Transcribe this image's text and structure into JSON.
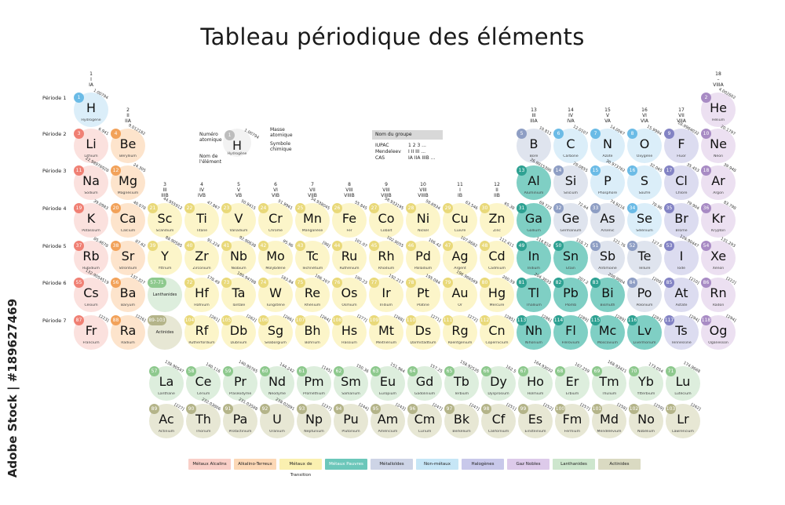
{
  "title": "Tableau périodique des éléments",
  "sidebar_text": "Adobe Stock | #189627469",
  "period_labels": [
    "Période 1",
    "Période 2",
    "Période 3",
    "Période 4",
    "Période 5",
    "Période 6",
    "Période 7"
  ],
  "group_labels": [
    {
      "g": 1,
      "text": "1\nI\nIA"
    },
    {
      "g": 2,
      "text": "2\nII\nIIA"
    },
    {
      "g": 3,
      "text": "3\nIII\nIIIB"
    },
    {
      "g": 4,
      "text": "4\nIV\nIVB"
    },
    {
      "g": 5,
      "text": "5\nV\nVB"
    },
    {
      "g": 6,
      "text": "6\nVI\nVIB"
    },
    {
      "g": 7,
      "text": "7\nVII\nVIIB"
    },
    {
      "g": 8,
      "text": "8\nVIII\nVIIIB"
    },
    {
      "g": 9,
      "text": "9\nVIII\nVIIIB"
    },
    {
      "g": 10,
      "text": "10\nVIII\nVIIIB"
    },
    {
      "g": 11,
      "text": "11\nI\nIB"
    },
    {
      "g": 12,
      "text": "12\nII\nIIB"
    },
    {
      "g": 13,
      "text": "13\nIII\nIIIA"
    },
    {
      "g": 14,
      "text": "14\nIV\nIVA"
    },
    {
      "g": 15,
      "text": "15\nV\nVA"
    },
    {
      "g": 16,
      "text": "16\nVI\nVIA"
    },
    {
      "g": 17,
      "text": "17\nVII\nVIIA"
    },
    {
      "g": 18,
      "text": "18\n–\nVIIIA"
    }
  ],
  "key": {
    "number_label": "Numéro atomique",
    "mass_label": "Masse atomique",
    "symbol_label": "Symbole chimique",
    "name_label": "Nom de l'élément",
    "example_number": "1",
    "example_mass": "1.00794",
    "example_symbol": "H",
    "example_name": "Hydrogène"
  },
  "group_key": {
    "header": "Nom du groupe",
    "rows": [
      {
        "label": "IUPAC",
        "value": "1  2  3 ..."
      },
      {
        "label": "Mendeleev",
        "value": "I  II  III ..."
      },
      {
        "label": "CAS",
        "value": "IA  IIA  IIIB ..."
      }
    ]
  },
  "placeholders": [
    {
      "period": 6,
      "num": "57-71",
      "label": "Lanthanides",
      "cat": "lan"
    },
    {
      "period": 7,
      "num": "89-103",
      "label": "Actinides",
      "cat": "act"
    }
  ],
  "colors": {
    "alk": {
      "bub": "#fbe1de",
      "num": "#f08074"
    },
    "ae": {
      "bub": "#fde4cc",
      "num": "#f2a25a"
    },
    "tm": {
      "bub": "#fcf5c9",
      "num": "#e9d97a"
    },
    "pm": {
      "bub": "#7fcfc4",
      "num": "#2ea192"
    },
    "met": {
      "bub": "#dfe4ee",
      "num": "#8e9ec4"
    },
    "non": {
      "bub": "#dbeef9",
      "num": "#6bbbe6"
    },
    "hal": {
      "bub": "#dcdcf0",
      "num": "#8383c4"
    },
    "ng": {
      "bub": "#ece0f1",
      "num": "#a88bc4"
    },
    "lan": {
      "bub": "#ddeedd",
      "num": "#8ec98e"
    },
    "act": {
      "bub": "#e7e7d4",
      "num": "#b4b489"
    }
  },
  "legend": [
    {
      "label": "Métaux Alcalins",
      "cat": "alk",
      "bg": "#f9cfc8"
    },
    {
      "label": "Alkalino-Terreux",
      "cat": "ae",
      "bg": "#fcd8b6"
    },
    {
      "label": "Métaux de Transition",
      "cat": "tm",
      "bg": "#faf0b0"
    },
    {
      "label": "Métaux Pauvres",
      "cat": "pm",
      "bg": "#6cc7ba"
    },
    {
      "label": "Métalloïdes",
      "cat": "met",
      "bg": "#cdd4e6"
    },
    {
      "label": "Non-métaux",
      "cat": "non",
      "bg": "#c6e6f6"
    },
    {
      "label": "Halogènes",
      "cat": "hal",
      "bg": "#c8c8ea"
    },
    {
      "label": "Gaz Nobles",
      "cat": "ng",
      "bg": "#ddcaea"
    },
    {
      "label": "Lanthanides",
      "cat": "lan",
      "bg": "#cde6cd"
    },
    {
      "label": "Actinides",
      "cat": "act",
      "bg": "#dadac2"
    }
  ],
  "elements": [
    {
      "z": 1,
      "s": "H",
      "n": "Hydrogène",
      "m": "1.00794",
      "p": 1,
      "g": 1,
      "c": "non"
    },
    {
      "z": 2,
      "s": "He",
      "n": "Hélium",
      "m": "4.002602",
      "p": 1,
      "g": 18,
      "c": "ng"
    },
    {
      "z": 3,
      "s": "Li",
      "n": "Lithium",
      "m": "6.941",
      "p": 2,
      "g": 1,
      "c": "alk"
    },
    {
      "z": 4,
      "s": "Be",
      "n": "Béryllium",
      "m": "9.012182",
      "p": 2,
      "g": 2,
      "c": "ae"
    },
    {
      "z": 5,
      "s": "B",
      "n": "Bore",
      "m": "10.811",
      "p": 2,
      "g": 13,
      "c": "met"
    },
    {
      "z": 6,
      "s": "C",
      "n": "Carbone",
      "m": "12.0107",
      "p": 2,
      "g": 14,
      "c": "non"
    },
    {
      "z": 7,
      "s": "N",
      "n": "Azote",
      "m": "14.0067",
      "p": 2,
      "g": 15,
      "c": "non"
    },
    {
      "z": 8,
      "s": "O",
      "n": "Oxygène",
      "m": "15.9994",
      "p": 2,
      "g": 16,
      "c": "non"
    },
    {
      "z": 9,
      "s": "F",
      "n": "Fluor",
      "m": "18.9984032",
      "p": 2,
      "g": 17,
      "c": "hal"
    },
    {
      "z": 10,
      "s": "Ne",
      "n": "Néon",
      "m": "20.1797",
      "p": 2,
      "g": 18,
      "c": "ng"
    },
    {
      "z": 11,
      "s": "Na",
      "n": "Sodium",
      "m": "22.98976928",
      "p": 3,
      "g": 1,
      "c": "alk"
    },
    {
      "z": 12,
      "s": "Mg",
      "n": "Magnésium",
      "m": "24.305",
      "p": 3,
      "g": 2,
      "c": "ae"
    },
    {
      "z": 13,
      "s": "Al",
      "n": "Aluminium",
      "m": "26.9815386",
      "p": 3,
      "g": 13,
      "c": "pm"
    },
    {
      "z": 14,
      "s": "Si",
      "n": "Silicium",
      "m": "28.0855",
      "p": 3,
      "g": 14,
      "c": "met"
    },
    {
      "z": 15,
      "s": "P",
      "n": "Phosphore",
      "m": "30.973762",
      "p": 3,
      "g": 15,
      "c": "non"
    },
    {
      "z": 16,
      "s": "S",
      "n": "Soufre",
      "m": "32.065",
      "p": 3,
      "g": 16,
      "c": "non"
    },
    {
      "z": 17,
      "s": "Cl",
      "n": "Chlore",
      "m": "35.453",
      "p": 3,
      "g": 17,
      "c": "hal"
    },
    {
      "z": 18,
      "s": "Ar",
      "n": "Argon",
      "m": "39.948",
      "p": 3,
      "g": 18,
      "c": "ng"
    },
    {
      "z": 19,
      "s": "K",
      "n": "Potassium",
      "m": "39.0983",
      "p": 4,
      "g": 1,
      "c": "alk"
    },
    {
      "z": 20,
      "s": "Ca",
      "n": "Calcium",
      "m": "40.078",
      "p": 4,
      "g": 2,
      "c": "ae"
    },
    {
      "z": 21,
      "s": "Sc",
      "n": "Scandium",
      "m": "44.955912",
      "p": 4,
      "g": 3,
      "c": "tm"
    },
    {
      "z": 22,
      "s": "Ti",
      "n": "Titane",
      "m": "47.867",
      "p": 4,
      "g": 4,
      "c": "tm"
    },
    {
      "z": 23,
      "s": "V",
      "n": "Vanadium",
      "m": "50.9415",
      "p": 4,
      "g": 5,
      "c": "tm"
    },
    {
      "z": 24,
      "s": "Cr",
      "n": "Chrome",
      "m": "51.9961",
      "p": 4,
      "g": 6,
      "c": "tm"
    },
    {
      "z": 25,
      "s": "Mn",
      "n": "Manganèse",
      "m": "54.938045",
      "p": 4,
      "g": 7,
      "c": "tm"
    },
    {
      "z": 26,
      "s": "Fe",
      "n": "Fer",
      "m": "55.845",
      "p": 4,
      "g": 8,
      "c": "tm"
    },
    {
      "z": 27,
      "s": "Co",
      "n": "Cobalt",
      "m": "58.933195",
      "p": 4,
      "g": 9,
      "c": "tm"
    },
    {
      "z": 28,
      "s": "Ni",
      "n": "Nickel",
      "m": "58.6934",
      "p": 4,
      "g": 10,
      "c": "tm"
    },
    {
      "z": 29,
      "s": "Cu",
      "n": "Cuivre",
      "m": "63.546",
      "p": 4,
      "g": 11,
      "c": "tm"
    },
    {
      "z": 30,
      "s": "Zn",
      "n": "Zinc",
      "m": "65.38",
      "p": 4,
      "g": 12,
      "c": "tm"
    },
    {
      "z": 31,
      "s": "Ga",
      "n": "Gallium",
      "m": "69.723",
      "p": 4,
      "g": 13,
      "c": "pm"
    },
    {
      "z": 32,
      "s": "Ge",
      "n": "Germanium",
      "m": "72.64",
      "p": 4,
      "g": 14,
      "c": "met"
    },
    {
      "z": 33,
      "s": "As",
      "n": "Arsenic",
      "m": "74.9216",
      "p": 4,
      "g": 15,
      "c": "met"
    },
    {
      "z": 34,
      "s": "Se",
      "n": "Sélénium",
      "m": "78.96",
      "p": 4,
      "g": 16,
      "c": "non"
    },
    {
      "z": 35,
      "s": "Br",
      "n": "Brome",
      "m": "79.904",
      "p": 4,
      "g": 17,
      "c": "hal"
    },
    {
      "z": 36,
      "s": "Kr",
      "n": "Krypton",
      "m": "83.798",
      "p": 4,
      "g": 18,
      "c": "ng"
    },
    {
      "z": 37,
      "s": "Rb",
      "n": "Rubidium",
      "m": "85.4678",
      "p": 5,
      "g": 1,
      "c": "alk"
    },
    {
      "z": 38,
      "s": "Sr",
      "n": "Strontium",
      "m": "87.62",
      "p": 5,
      "g": 2,
      "c": "ae"
    },
    {
      "z": 39,
      "s": "Y",
      "n": "Yttrium",
      "m": "88.90585",
      "p": 5,
      "g": 3,
      "c": "tm"
    },
    {
      "z": 40,
      "s": "Zr",
      "n": "Zirconium",
      "m": "91.224",
      "p": 5,
      "g": 4,
      "c": "tm"
    },
    {
      "z": 41,
      "s": "Nb",
      "n": "Niobium",
      "m": "92.90638",
      "p": 5,
      "g": 5,
      "c": "tm"
    },
    {
      "z": 42,
      "s": "Mo",
      "n": "Molybdène",
      "m": "95.96",
      "p": 5,
      "g": 6,
      "c": "tm"
    },
    {
      "z": 43,
      "s": "Tc",
      "n": "Technétium",
      "m": "[98]",
      "p": 5,
      "g": 7,
      "c": "tm"
    },
    {
      "z": 44,
      "s": "Ru",
      "n": "Ruthénium",
      "m": "101.07",
      "p": 5,
      "g": 8,
      "c": "tm"
    },
    {
      "z": 45,
      "s": "Rh",
      "n": "Rhodium",
      "m": "102.9055",
      "p": 5,
      "g": 9,
      "c": "tm"
    },
    {
      "z": 46,
      "s": "Pd",
      "n": "Palladium",
      "m": "106.42",
      "p": 5,
      "g": 10,
      "c": "tm"
    },
    {
      "z": 47,
      "s": "Ag",
      "n": "Argent",
      "m": "107.8682",
      "p": 5,
      "g": 11,
      "c": "tm"
    },
    {
      "z": 48,
      "s": "Cd",
      "n": "Cadmium",
      "m": "112.411",
      "p": 5,
      "g": 12,
      "c": "tm"
    },
    {
      "z": 49,
      "s": "In",
      "n": "Indium",
      "m": "114.818",
      "p": 5,
      "g": 13,
      "c": "pm"
    },
    {
      "z": 50,
      "s": "Sn",
      "n": "Étain",
      "m": "118.71",
      "p": 5,
      "g": 14,
      "c": "pm"
    },
    {
      "z": 51,
      "s": "Sb",
      "n": "Antimoine",
      "m": "121.76",
      "p": 5,
      "g": 15,
      "c": "met"
    },
    {
      "z": 52,
      "s": "Te",
      "n": "Tellure",
      "m": "127.6",
      "p": 5,
      "g": 16,
      "c": "met"
    },
    {
      "z": 53,
      "s": "I",
      "n": "Iode",
      "m": "126.90447",
      "p": 5,
      "g": 17,
      "c": "hal"
    },
    {
      "z": 54,
      "s": "Xe",
      "n": "Xénon",
      "m": "131.293",
      "p": 5,
      "g": 18,
      "c": "ng"
    },
    {
      "z": 55,
      "s": "Cs",
      "n": "Césium",
      "m": "132.9054519",
      "p": 6,
      "g": 1,
      "c": "alk"
    },
    {
      "z": 56,
      "s": "Ba",
      "n": "Baryum",
      "m": "137.327",
      "p": 6,
      "g": 2,
      "c": "ae"
    },
    {
      "z": 72,
      "s": "Hf",
      "n": "Hafnium",
      "m": "178.49",
      "p": 6,
      "g": 4,
      "c": "tm"
    },
    {
      "z": 73,
      "s": "Ta",
      "n": "Tantale",
      "m": "180.94788",
      "p": 6,
      "g": 5,
      "c": "tm"
    },
    {
      "z": 74,
      "s": "W",
      "n": "Tungstène",
      "m": "183.84",
      "p": 6,
      "g": 6,
      "c": "tm"
    },
    {
      "z": 75,
      "s": "Re",
      "n": "Rhénium",
      "m": "186.207",
      "p": 6,
      "g": 7,
      "c": "tm"
    },
    {
      "z": 76,
      "s": "Os",
      "n": "Osmium",
      "m": "190.23",
      "p": 6,
      "g": 8,
      "c": "tm"
    },
    {
      "z": 77,
      "s": "Ir",
      "n": "Iridium",
      "m": "192.217",
      "p": 6,
      "g": 9,
      "c": "tm"
    },
    {
      "z": 78,
      "s": "Pt",
      "n": "Platine",
      "m": "195.084",
      "p": 6,
      "g": 10,
      "c": "tm"
    },
    {
      "z": 79,
      "s": "Au",
      "n": "Or",
      "m": "196.966569",
      "p": 6,
      "g": 11,
      "c": "tm"
    },
    {
      "z": 80,
      "s": "Hg",
      "n": "Mercure",
      "m": "200.59",
      "p": 6,
      "g": 12,
      "c": "tm"
    },
    {
      "z": 81,
      "s": "Tl",
      "n": "Thallium",
      "m": "204.3833",
      "p": 6,
      "g": 13,
      "c": "pm"
    },
    {
      "z": 82,
      "s": "Pb",
      "n": "Plomb",
      "m": "207.2",
      "p": 6,
      "g": 14,
      "c": "pm"
    },
    {
      "z": 83,
      "s": "Bi",
      "n": "Bismuth",
      "m": "208.9804",
      "p": 6,
      "g": 15,
      "c": "pm"
    },
    {
      "z": 84,
      "s": "Po",
      "n": "Polonium",
      "m": "[209]",
      "p": 6,
      "g": 16,
      "c": "met"
    },
    {
      "z": 85,
      "s": "At",
      "n": "Astate",
      "m": "[210]",
      "p": 6,
      "g": 17,
      "c": "hal"
    },
    {
      "z": 86,
      "s": "Rn",
      "n": "Radon",
      "m": "[222]",
      "p": 6,
      "g": 18,
      "c": "ng"
    },
    {
      "z": 87,
      "s": "Fr",
      "n": "Francium",
      "m": "[223]",
      "p": 7,
      "g": 1,
      "c": "alk"
    },
    {
      "z": 88,
      "s": "Ra",
      "n": "Radium",
      "m": "[226]",
      "p": 7,
      "g": 2,
      "c": "ae"
    },
    {
      "z": 104,
      "s": "Rf",
      "n": "Rutherfordium",
      "m": "[261]",
      "p": 7,
      "g": 4,
      "c": "tm"
    },
    {
      "z": 105,
      "s": "Db",
      "n": "Dubnium",
      "m": "[262]",
      "p": 7,
      "g": 5,
      "c": "tm"
    },
    {
      "z": 106,
      "s": "Sg",
      "n": "Seaborgium",
      "m": "[266]",
      "p": 7,
      "g": 6,
      "c": "tm"
    },
    {
      "z": 107,
      "s": "Bh",
      "n": "Bohrium",
      "m": "[264]",
      "p": 7,
      "g": 7,
      "c": "tm"
    },
    {
      "z": 108,
      "s": "Hs",
      "n": "Hassium",
      "m": "[277]",
      "p": 7,
      "g": 8,
      "c": "tm"
    },
    {
      "z": 109,
      "s": "Mt",
      "n": "Meitnérium",
      "m": "[268]",
      "p": 7,
      "g": 9,
      "c": "tm"
    },
    {
      "z": 110,
      "s": "Ds",
      "n": "Darmstadtium",
      "m": "[271]",
      "p": 7,
      "g": 10,
      "c": "tm"
    },
    {
      "z": 111,
      "s": "Rg",
      "n": "Roentgenium",
      "m": "[272]",
      "p": 7,
      "g": 11,
      "c": "tm"
    },
    {
      "z": 112,
      "s": "Cn",
      "n": "Copernicium",
      "m": "[285]",
      "p": 7,
      "g": 12,
      "c": "tm"
    },
    {
      "z": 113,
      "s": "Nh",
      "n": "Nihonium",
      "m": "[286]",
      "p": 7,
      "g": 13,
      "c": "pm"
    },
    {
      "z": 114,
      "s": "Fl",
      "n": "Flérovium",
      "m": "[289]",
      "p": 7,
      "g": 14,
      "c": "pm"
    },
    {
      "z": 115,
      "s": "Mc",
      "n": "Moscovium",
      "m": "[289]",
      "p": 7,
      "g": 15,
      "c": "pm"
    },
    {
      "z": 116,
      "s": "Lv",
      "n": "Livermorium",
      "m": "[293]",
      "p": 7,
      "g": 16,
      "c": "pm"
    },
    {
      "z": 117,
      "s": "Ts",
      "n": "Tennessine",
      "m": "[294]",
      "p": 7,
      "g": 17,
      "c": "hal"
    },
    {
      "z": 118,
      "s": "Og",
      "n": "Oganesson",
      "m": "[294]",
      "p": 7,
      "g": 18,
      "c": "ng"
    }
  ],
  "lanthanides": [
    {
      "z": 57,
      "s": "La",
      "n": "Lanthane",
      "m": "138.90547"
    },
    {
      "z": 58,
      "s": "Ce",
      "n": "Cérium",
      "m": "140.116"
    },
    {
      "z": 59,
      "s": "Pr",
      "n": "Praséodyme",
      "m": "140.90765"
    },
    {
      "z": 60,
      "s": "Nd",
      "n": "Néodyme",
      "m": "144.242"
    },
    {
      "z": 61,
      "s": "Pm",
      "n": "Prométhium",
      "m": "[145]"
    },
    {
      "z": 62,
      "s": "Sm",
      "n": "Samarium",
      "m": "150.36"
    },
    {
      "z": 63,
      "s": "Eu",
      "n": "Europium",
      "m": "151.964"
    },
    {
      "z": 64,
      "s": "Gd",
      "n": "Gadolinium",
      "m": "157.25"
    },
    {
      "z": 65,
      "s": "Tb",
      "n": "Terbium",
      "m": "158.92535"
    },
    {
      "z": 66,
      "s": "Dy",
      "n": "Dysprosium",
      "m": "162.5"
    },
    {
      "z": 67,
      "s": "Ho",
      "n": "Holmium",
      "m": "164.93032"
    },
    {
      "z": 68,
      "s": "Er",
      "n": "Erbium",
      "m": "167.259"
    },
    {
      "z": 69,
      "s": "Tm",
      "n": "Thulium",
      "m": "168.93421"
    },
    {
      "z": 70,
      "s": "Yb",
      "n": "Ytterbium",
      "m": "173.054"
    },
    {
      "z": 71,
      "s": "Lu",
      "n": "Lutécium",
      "m": "174.9668"
    }
  ],
  "actinides": [
    {
      "z": 89,
      "s": "Ac",
      "n": "Actinium",
      "m": "[227]"
    },
    {
      "z": 90,
      "s": "Th",
      "n": "Thorium",
      "m": "232.03806"
    },
    {
      "z": 91,
      "s": "Pa",
      "n": "Protactinium",
      "m": "231.03588"
    },
    {
      "z": 92,
      "s": "U",
      "n": "Uranium",
      "m": "238.02891"
    },
    {
      "z": 93,
      "s": "Np",
      "n": "Neptunium",
      "m": "[237]"
    },
    {
      "z": 94,
      "s": "Pu",
      "n": "Plutonium",
      "m": "[244]"
    },
    {
      "z": 95,
      "s": "Am",
      "n": "Américium",
      "m": "[243]"
    },
    {
      "z": 96,
      "s": "Cm",
      "n": "Curium",
      "m": "[247]"
    },
    {
      "z": 97,
      "s": "Bk",
      "n": "Berkélium",
      "m": "[247]"
    },
    {
      "z": 98,
      "s": "Cf",
      "n": "Californium",
      "m": "[251]"
    },
    {
      "z": 99,
      "s": "Es",
      "n": "Einsteinium",
      "m": "[252]"
    },
    {
      "z": 100,
      "s": "Fm",
      "n": "Fermium",
      "m": "[257]"
    },
    {
      "z": 101,
      "s": "Md",
      "n": "Mendélévium",
      "m": "[258]"
    },
    {
      "z": 102,
      "s": "No",
      "n": "Nobélium",
      "m": "[259]"
    },
    {
      "z": 103,
      "s": "Lr",
      "n": "Lawrencium",
      "m": "[262]"
    }
  ]
}
